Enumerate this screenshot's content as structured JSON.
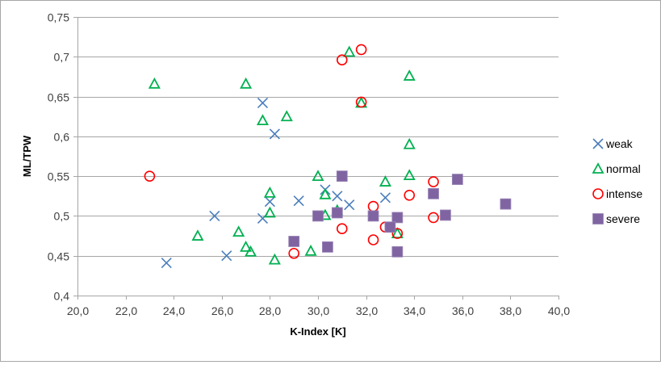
{
  "chart_data": {
    "type": "scatter",
    "title": "",
    "xlabel": "K-Index [K]",
    "ylabel": "ML/TPW",
    "xlim": [
      20,
      40
    ],
    "ylim": [
      0.4,
      0.75
    ],
    "grid": "horizontal",
    "legend_position": "right",
    "x_ticks": [
      "20,0",
      "22,0",
      "24,0",
      "26,0",
      "28,0",
      "30,0",
      "32,0",
      "34,0",
      "36,0",
      "38,0",
      "40,0"
    ],
    "x_tick_values": [
      20,
      22,
      24,
      26,
      28,
      30,
      32,
      34,
      36,
      38,
      40
    ],
    "y_ticks": [
      "0,4",
      "0,45",
      "0,5",
      "0,55",
      "0,6",
      "0,65",
      "0,7",
      "0,75"
    ],
    "y_tick_values": [
      0.4,
      0.45,
      0.5,
      0.55,
      0.6,
      0.65,
      0.7,
      0.75
    ],
    "series": [
      {
        "name": "weak",
        "marker": "x",
        "color": "#4a7ebb",
        "points": [
          [
            23.7,
            0.441
          ],
          [
            25.7,
            0.5
          ],
          [
            26.2,
            0.45
          ],
          [
            27.7,
            0.497
          ],
          [
            28.0,
            0.518
          ],
          [
            27.7,
            0.642
          ],
          [
            28.2,
            0.603
          ],
          [
            29.2,
            0.519
          ],
          [
            30.3,
            0.533
          ],
          [
            30.8,
            0.525
          ],
          [
            31.3,
            0.514
          ],
          [
            32.8,
            0.523
          ]
        ]
      },
      {
        "name": "normal",
        "marker": "triangle",
        "color": "#00b050",
        "points": [
          [
            23.2,
            0.666
          ],
          [
            27.0,
            0.666
          ],
          [
            27.7,
            0.62
          ],
          [
            28.7,
            0.625
          ],
          [
            31.8,
            0.642
          ],
          [
            31.3,
            0.706
          ],
          [
            33.8,
            0.676
          ],
          [
            33.8,
            0.59
          ],
          [
            33.8,
            0.551
          ],
          [
            32.8,
            0.543
          ],
          [
            30.0,
            0.55
          ],
          [
            28.0,
            0.529
          ],
          [
            28.0,
            0.504
          ],
          [
            30.3,
            0.527
          ],
          [
            30.3,
            0.501
          ],
          [
            25.0,
            0.475
          ],
          [
            26.7,
            0.48
          ],
          [
            27.0,
            0.461
          ],
          [
            27.2,
            0.455
          ],
          [
            28.2,
            0.445
          ],
          [
            29.7,
            0.456
          ],
          [
            33.3,
            0.478
          ],
          [
            30.8,
            0.507
          ]
        ]
      },
      {
        "name": "intense",
        "marker": "circle",
        "color": "#ff0000",
        "points": [
          [
            23.0,
            0.55
          ],
          [
            31.0,
            0.696
          ],
          [
            31.8,
            0.709
          ],
          [
            31.8,
            0.643
          ],
          [
            34.8,
            0.543
          ],
          [
            33.8,
            0.526
          ],
          [
            32.3,
            0.512
          ],
          [
            34.8,
            0.498
          ],
          [
            32.8,
            0.486
          ],
          [
            33.3,
            0.478
          ],
          [
            32.3,
            0.47
          ],
          [
            31.0,
            0.484
          ],
          [
            29.0,
            0.453
          ]
        ]
      },
      {
        "name": "severe",
        "marker": "square",
        "color": "#8064a2",
        "points": [
          [
            35.8,
            0.546
          ],
          [
            34.8,
            0.528
          ],
          [
            37.8,
            0.515
          ],
          [
            35.3,
            0.501
          ],
          [
            30.8,
            0.504
          ],
          [
            32.3,
            0.5
          ],
          [
            33.3,
            0.498
          ],
          [
            33.0,
            0.486
          ],
          [
            33.3,
            0.455
          ],
          [
            30.4,
            0.461
          ],
          [
            31.0,
            0.55
          ],
          [
            30.0,
            0.5
          ],
          [
            29.0,
            0.468
          ]
        ]
      }
    ]
  }
}
